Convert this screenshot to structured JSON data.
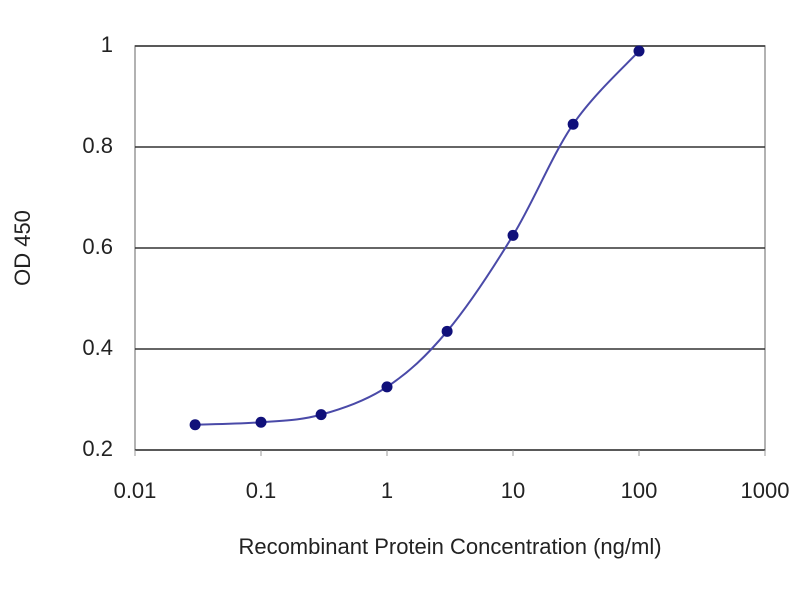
{
  "chart_data": {
    "type": "line",
    "x_label": "Recombinant Protein Concentration (ng/ml)",
    "y_label": "OD 450",
    "x": [
      0.03,
      0.1,
      0.3,
      1,
      3,
      10,
      30,
      100
    ],
    "values": [
      0.25,
      0.255,
      0.27,
      0.325,
      0.435,
      0.625,
      0.845,
      0.99
    ],
    "color": "#4a4aa8",
    "marker_color": "#10107a",
    "x_scale": "log",
    "xlim": [
      0.01,
      1000
    ],
    "xticks": [
      0.01,
      0.1,
      1,
      10,
      100,
      1000
    ],
    "ylim": [
      0.2,
      1
    ],
    "yticks": [
      0.2,
      0.4,
      0.6,
      0.8,
      1
    ],
    "grid": true
  }
}
